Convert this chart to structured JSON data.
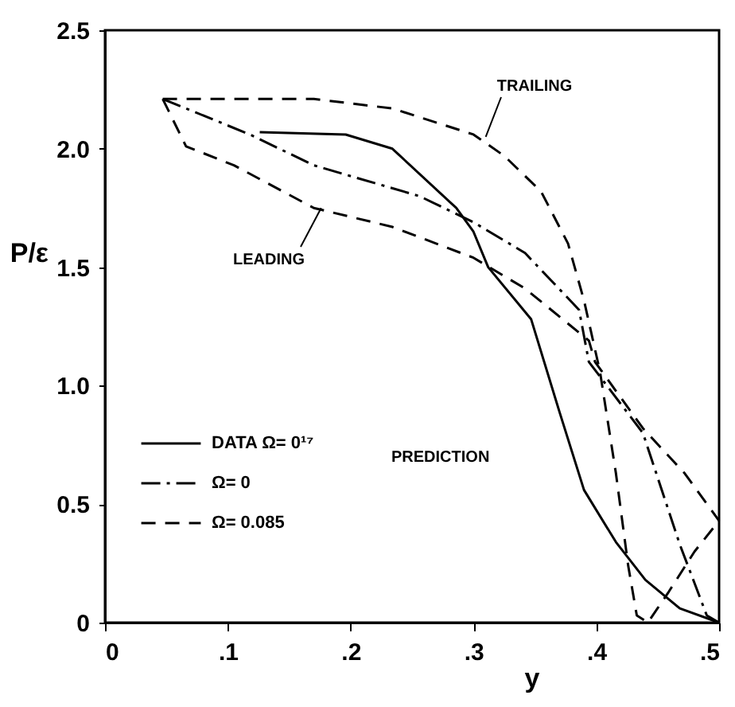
{
  "chart_data": {
    "type": "line",
    "xlabel": "y",
    "ylabel": "P/ε",
    "xlim": [
      0,
      0.5
    ],
    "ylim": [
      0,
      2.5
    ],
    "xticks": [
      {
        "value": 0,
        "label": "0"
      },
      {
        "value": 0.1,
        "label": ".1"
      },
      {
        "value": 0.2,
        "label": ".2"
      },
      {
        "value": 0.3,
        "label": ".3"
      },
      {
        "value": 0.4,
        "label": ".4"
      },
      {
        "value": 0.5,
        "label": ".5"
      }
    ],
    "yticks": [
      {
        "value": 0,
        "label": "0"
      },
      0.5,
      {
        "value": 1,
        "label": "1.0"
      },
      1.5,
      {
        "value": 2,
        "label": "2.0"
      },
      2.5
    ],
    "grid": false,
    "legend": "left",
    "series": [
      {
        "name": "DATA Ω= 0¹⁷",
        "color": "#000000",
        "line_style": "solid",
        "x": [
          0.126,
          0.196,
          0.234,
          0.286,
          0.3,
          0.312,
          0.347,
          0.37,
          0.39,
          0.416,
          0.44,
          0.468,
          0.5
        ],
        "values": [
          2.07,
          2.06,
          2.0,
          1.75,
          1.65,
          1.5,
          1.28,
          0.89,
          0.56,
          0.34,
          0.18,
          0.06,
          0.0
        ]
      },
      {
        "name": "Ω= 0",
        "color": "#000000",
        "line_style": "dashdot",
        "x": [
          0.047,
          0.118,
          0.17,
          0.256,
          0.3,
          0.342,
          0.386,
          0.394,
          0.438,
          0.468,
          0.49,
          0.5
        ],
        "values": [
          2.21,
          2.06,
          1.93,
          1.8,
          1.69,
          1.56,
          1.32,
          1.1,
          0.8,
          0.33,
          0.03,
          0.0
        ]
      },
      {
        "name": "Ω= 0.085",
        "color": "#000000",
        "line_style": "dashed",
        "x": [
          0.047,
          0.066,
          0.105,
          0.17,
          0.234,
          0.3,
          0.342,
          0.394,
          0.399,
          0.438,
          0.472,
          0.5
        ],
        "values": [
          2.21,
          2.01,
          1.93,
          1.75,
          1.67,
          1.54,
          1.41,
          1.19,
          1.1,
          0.82,
          0.63,
          0.43
        ]
      },
      {
        "color": "#000000",
        "line_style": "dashed",
        "x": [
          0.047,
          0.17,
          0.234,
          0.3,
          0.325,
          0.355,
          0.377,
          0.39,
          0.403,
          0.416,
          0.426,
          0.433,
          0.442,
          0.459,
          0.48,
          0.5
        ],
        "values": [
          2.21,
          2.21,
          2.17,
          2.06,
          1.97,
          1.82,
          1.6,
          1.36,
          1.06,
          0.63,
          0.24,
          0.03,
          0.0,
          0.13,
          0.3,
          0.43
        ]
      }
    ],
    "annotations": [
      {
        "text": "LEADING",
        "x": 0.176,
        "y": 1.75
      },
      {
        "text": "TRAILING",
        "x": 0.31,
        "y": 2.05
      },
      "PREDICTION"
    ]
  }
}
